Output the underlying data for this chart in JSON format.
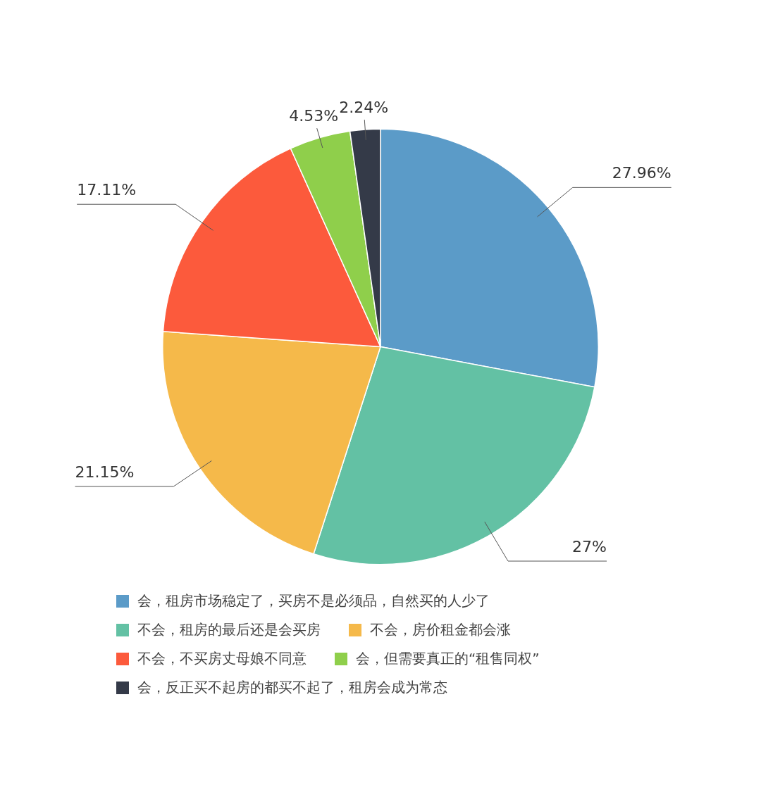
{
  "chart_data": {
    "type": "pie",
    "categories": [
      "会，租房市场稳定了，买房不是必须品，自然买的人少了",
      "不会，租房的最后还是会买房",
      "不会，房价租金都会涨",
      "不会，不买房丈母娘不同意",
      "会，但需要真正的“租售同权”",
      "会，反正买不起房的都买不起了，租房会成为常态"
    ],
    "values": [
      27.96,
      27,
      21.15,
      17.11,
      4.53,
      2.24
    ],
    "value_labels": [
      "27.96%",
      "27%",
      "21.15%",
      "17.11%",
      "4.53%",
      "2.24%"
    ],
    "colors": [
      "#5b9bc8",
      "#63c1a4",
      "#f5b94a",
      "#fc5a3c",
      "#8fcf4b",
      "#343a48"
    ],
    "legend": "bottom"
  }
}
